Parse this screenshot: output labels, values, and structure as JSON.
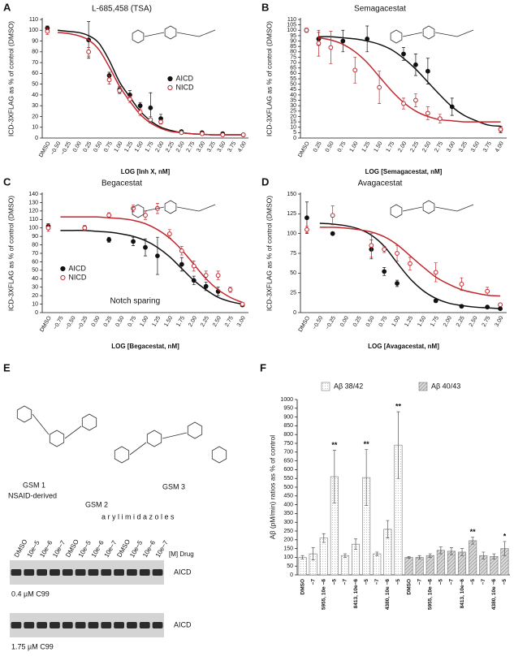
{
  "chart_data": [
    {
      "label": "A",
      "type": "scatter",
      "title": "L-685,458 (TSA)",
      "xlabel": "LOG [Inh X, nM]",
      "ylabel": "ICD-3XFLAG as % of control (DMSO)",
      "categories": [
        "DMSO",
        "−0.50",
        "−0.25",
        "0.00",
        "0.25",
        "0.50",
        "0.75",
        "1.00",
        "1.25",
        "1.50",
        "1.75",
        "2.00",
        "2.25",
        "2.50",
        "2.75",
        "3.00",
        "3.25",
        "3.50",
        "3.75",
        "4.00"
      ],
      "series": [
        {
          "name": "AICD",
          "color": "#111111",
          "marker": "filled",
          "values": [
            102,
            null,
            null,
            null,
            91,
            null,
            58,
            45,
            40,
            30,
            28,
            18,
            null,
            6,
            null,
            5,
            null,
            4,
            null,
            3
          ],
          "errors": [
            2,
            null,
            null,
            null,
            17,
            null,
            3,
            3,
            4,
            3,
            14,
            4,
            null,
            1,
            null,
            1,
            null,
            1,
            null,
            1
          ],
          "fit": [
            null,
            100,
            99,
            98,
            95,
            88,
            72,
            52,
            38,
            25,
            16,
            10,
            7,
            5,
            4,
            3.5,
            3,
            3,
            3,
            3
          ]
        },
        {
          "name": "NICD",
          "color": "#c1272d",
          "marker": "open",
          "values": [
            99,
            null,
            null,
            null,
            80,
            null,
            54,
            44,
            36,
            24,
            17,
            15,
            null,
            5,
            null,
            4,
            null,
            3,
            null,
            3
          ],
          "errors": [
            3,
            null,
            null,
            null,
            4,
            null,
            4,
            3,
            3,
            3,
            3,
            2,
            null,
            1,
            null,
            1,
            null,
            1,
            null,
            1
          ],
          "fit": [
            null,
            98,
            97,
            95,
            91,
            82,
            66,
            48,
            34,
            22,
            14,
            9,
            6,
            5,
            4,
            3.5,
            3,
            3,
            3,
            3
          ]
        }
      ],
      "ylim": [
        0,
        110
      ],
      "yticks": [
        0,
        10,
        20,
        30,
        40,
        50,
        60,
        70,
        80,
        90,
        100,
        110
      ],
      "legend": "right"
    },
    {
      "label": "B",
      "type": "scatter",
      "title": "Semagacestat",
      "xlabel": "LOG [Semagacestat, nM]",
      "ylabel": "ICD-3XFLAG as % of control (DMSO)",
      "categories": [
        "DMSO",
        "0.25",
        "0.50",
        "0.75",
        "1.00",
        "1.25",
        "1.50",
        "1.75",
        "2.00",
        "2.25",
        "2.50",
        "2.75",
        "3.00",
        "3.25",
        "3.50",
        "3.75",
        "4.00"
      ],
      "series": [
        {
          "color": "#111111",
          "marker": "filled",
          "values": [
            100,
            92,
            null,
            90,
            null,
            92,
            null,
            null,
            78,
            68,
            62,
            null,
            29,
            null,
            null,
            null,
            8
          ],
          "errors": [
            1,
            6,
            null,
            10,
            null,
            12,
            null,
            null,
            6,
            10,
            12,
            null,
            8,
            null,
            null,
            null,
            3
          ],
          "fit": [
            null,
            94,
            94,
            93,
            92,
            90,
            87,
            82,
            74,
            64,
            52,
            40,
            29,
            21,
            16,
            12,
            11
          ]
        },
        {
          "color": "#c1272d",
          "marker": "open",
          "values": [
            100,
            88,
            84,
            null,
            63,
            null,
            47,
            null,
            32,
            35,
            23,
            18,
            null,
            null,
            null,
            null,
            8
          ],
          "errors": [
            2,
            12,
            15,
            null,
            12,
            null,
            15,
            null,
            5,
            6,
            6,
            4,
            null,
            null,
            null,
            null,
            2
          ],
          "fit": [
            null,
            93,
            91,
            87,
            80,
            70,
            57,
            44,
            33,
            25,
            20,
            17,
            16,
            15,
            15,
            15,
            15
          ]
        }
      ],
      "ylim": [
        0,
        110
      ],
      "yticks": [
        0,
        5,
        10,
        15,
        20,
        25,
        30,
        35,
        40,
        45,
        50,
        55,
        60,
        65,
        70,
        75,
        80,
        85,
        90,
        95,
        100,
        105,
        110
      ]
    },
    {
      "label": "C",
      "type": "scatter",
      "title": "Begacestat",
      "xlabel": "LOG [Begacestat, nM]",
      "ylabel": "ICD-3XFLAG as % of control (DMSO)",
      "annotation": "Notch sparing",
      "categories": [
        "DMSO",
        "−0.75",
        "−0.50",
        "−0.25",
        "0.00",
        "0.25",
        "0.50",
        "0.75",
        "1.00",
        "1.25",
        "1.50",
        "1.75",
        "2.00",
        "2.25",
        "2.50",
        "2.75",
        "3.00"
      ],
      "series": [
        {
          "name": "AICD",
          "color": "#111111",
          "marker": "filled",
          "values": [
            102,
            null,
            null,
            100,
            null,
            86,
            null,
            84,
            77,
            67,
            null,
            57,
            38,
            31,
            25,
            null,
            9
          ],
          "errors": [
            3,
            null,
            null,
            2,
            null,
            3,
            null,
            5,
            10,
            22,
            null,
            8,
            5,
            5,
            5,
            null,
            2
          ],
          "fit": [
            null,
            97,
            97,
            97,
            96,
            95,
            93,
            90,
            85,
            77,
            66,
            52,
            38,
            27,
            18,
            13,
            10
          ]
        },
        {
          "name": "NICD",
          "color": "#c1272d",
          "marker": "open",
          "values": [
            100,
            null,
            null,
            100,
            null,
            115,
            null,
            123,
            115,
            123,
            93,
            73,
            55,
            44,
            44,
            27,
            10
          ],
          "errors": [
            4,
            null,
            null,
            3,
            null,
            3,
            null,
            4,
            5,
            6,
            5,
            5,
            6,
            5,
            5,
            3,
            2
          ],
          "fit": [
            null,
            113,
            113,
            113,
            113,
            112,
            111,
            109,
            105,
            98,
            88,
            74,
            57,
            40,
            27,
            18,
            12
          ]
        }
      ],
      "ylim": [
        0,
        140
      ],
      "yticks": [
        0,
        10,
        20,
        30,
        40,
        50,
        60,
        70,
        80,
        90,
        100,
        110,
        120,
        130,
        140
      ],
      "legend": "lower left"
    },
    {
      "label": "D",
      "type": "scatter",
      "title": "Avagacestat",
      "xlabel": "LOG [Avagacestat, nM]",
      "ylabel": "ICD-3XFLAG as % of control (DMSO)",
      "categories": [
        "DMSO",
        "−0.50",
        "−0.25",
        "0.00",
        "0.25",
        "0.50",
        "0.75",
        "1.00",
        "1.25",
        "1.50",
        "1.75",
        "2.00",
        "2.25",
        "2.50",
        "2.75",
        "3.00"
      ],
      "series": [
        {
          "color": "#111111",
          "marker": "filled",
          "values": [
            120,
            null,
            100,
            null,
            null,
            80,
            52,
            37,
            null,
            null,
            15,
            null,
            8,
            null,
            7,
            5
          ],
          "errors": [
            20,
            null,
            2,
            null,
            null,
            12,
            5,
            4,
            null,
            null,
            2,
            null,
            1,
            null,
            1,
            1
          ],
          "fit": [
            null,
            113,
            112,
            110,
            106,
            98,
            84,
            63,
            43,
            28,
            18,
            12,
            9,
            7,
            6,
            5
          ]
        },
        {
          "color": "#c1272d",
          "marker": "open",
          "values": [
            105,
            null,
            123,
            null,
            null,
            85,
            80,
            75,
            62,
            null,
            51,
            null,
            36,
            null,
            27,
            10
          ],
          "errors": [
            4,
            null,
            12,
            null,
            null,
            15,
            4,
            10,
            8,
            null,
            12,
            null,
            8,
            null,
            5,
            2
          ],
          "fit": [
            null,
            108,
            108,
            107,
            105,
            102,
            96,
            86,
            72,
            58,
            45,
            36,
            29,
            25,
            22,
            21
          ]
        }
      ],
      "ylim": [
        0,
        150
      ],
      "yticks": [
        0,
        25,
        50,
        75,
        100,
        125,
        150
      ]
    },
    {
      "label": "F",
      "type": "bar",
      "ylabel": "Aβ (pM/min) ratios as % of control",
      "categories": [
        "DMSO",
        "−7",
        "5955, 10e −6",
        "−5",
        "−7",
        "8413, 10e−6",
        "−5",
        "−7",
        "4380, 10e −6",
        "−5",
        "DMSO",
        "−7",
        "5955, 10e −6",
        "−5",
        "−7",
        "8413, 10e−6",
        "−5",
        "−7",
        "4380, 10e −6",
        "−5"
      ],
      "series": [
        {
          "name": "Aβ 38/42",
          "color": "#ffffff",
          "pattern": "dotted",
          "values": [
            100,
            120,
            210,
            560,
            110,
            175,
            555,
            120,
            260,
            740,
            null,
            null,
            null,
            null,
            null,
            null,
            null,
            null,
            null,
            null
          ],
          "errors": [
            10,
            35,
            25,
            150,
            10,
            30,
            160,
            10,
            50,
            190,
            null,
            null,
            null,
            null,
            null,
            null,
            null,
            null,
            null,
            null
          ],
          "significance": [
            null,
            null,
            null,
            "**",
            null,
            null,
            "**",
            null,
            null,
            "**",
            null,
            null,
            null,
            null,
            null,
            null,
            null,
            null,
            null,
            null
          ]
        },
        {
          "name": "Aβ 40/43",
          "color": "#d9d9d9",
          "pattern": "hatched",
          "values": [
            null,
            null,
            null,
            null,
            null,
            null,
            null,
            null,
            null,
            null,
            100,
            100,
            110,
            140,
            135,
            130,
            195,
            110,
            105,
            150
          ],
          "errors": [
            null,
            null,
            null,
            null,
            null,
            null,
            null,
            null,
            null,
            null,
            5,
            10,
            10,
            20,
            20,
            20,
            20,
            20,
            15,
            40
          ],
          "significance": [
            null,
            null,
            null,
            null,
            null,
            null,
            null,
            null,
            null,
            null,
            null,
            null,
            null,
            null,
            null,
            null,
            "**",
            null,
            null,
            "*"
          ]
        }
      ],
      "ylim": [
        0,
        1000
      ],
      "yticks": [
        0,
        50,
        100,
        150,
        200,
        250,
        300,
        350,
        400,
        450,
        500,
        550,
        600,
        650,
        700,
        750,
        800,
        850,
        900,
        950,
        1000
      ]
    }
  ],
  "panel_e": {
    "label": "E",
    "compounds": [
      {
        "name": "GSM 1",
        "note": "NSAID-derived"
      },
      {
        "name": "GSM 2"
      },
      {
        "name": "GSM 3"
      }
    ],
    "class_label": "a r y l i m i d a z o l e s",
    "blot": {
      "lanes": [
        "DMSO",
        "10e−5",
        "10e−6",
        "10e−7",
        "DMSO",
        "10e−5",
        "10e−6",
        "10e−7",
        "DMSO",
        "10e−5",
        "10e−6",
        "10e−7"
      ],
      "drug_label": "[M] Drug",
      "band_labels": [
        "AICD",
        "AICD"
      ],
      "conditions": [
        "0.4 µM C99",
        "1.75 µM C99"
      ]
    }
  }
}
